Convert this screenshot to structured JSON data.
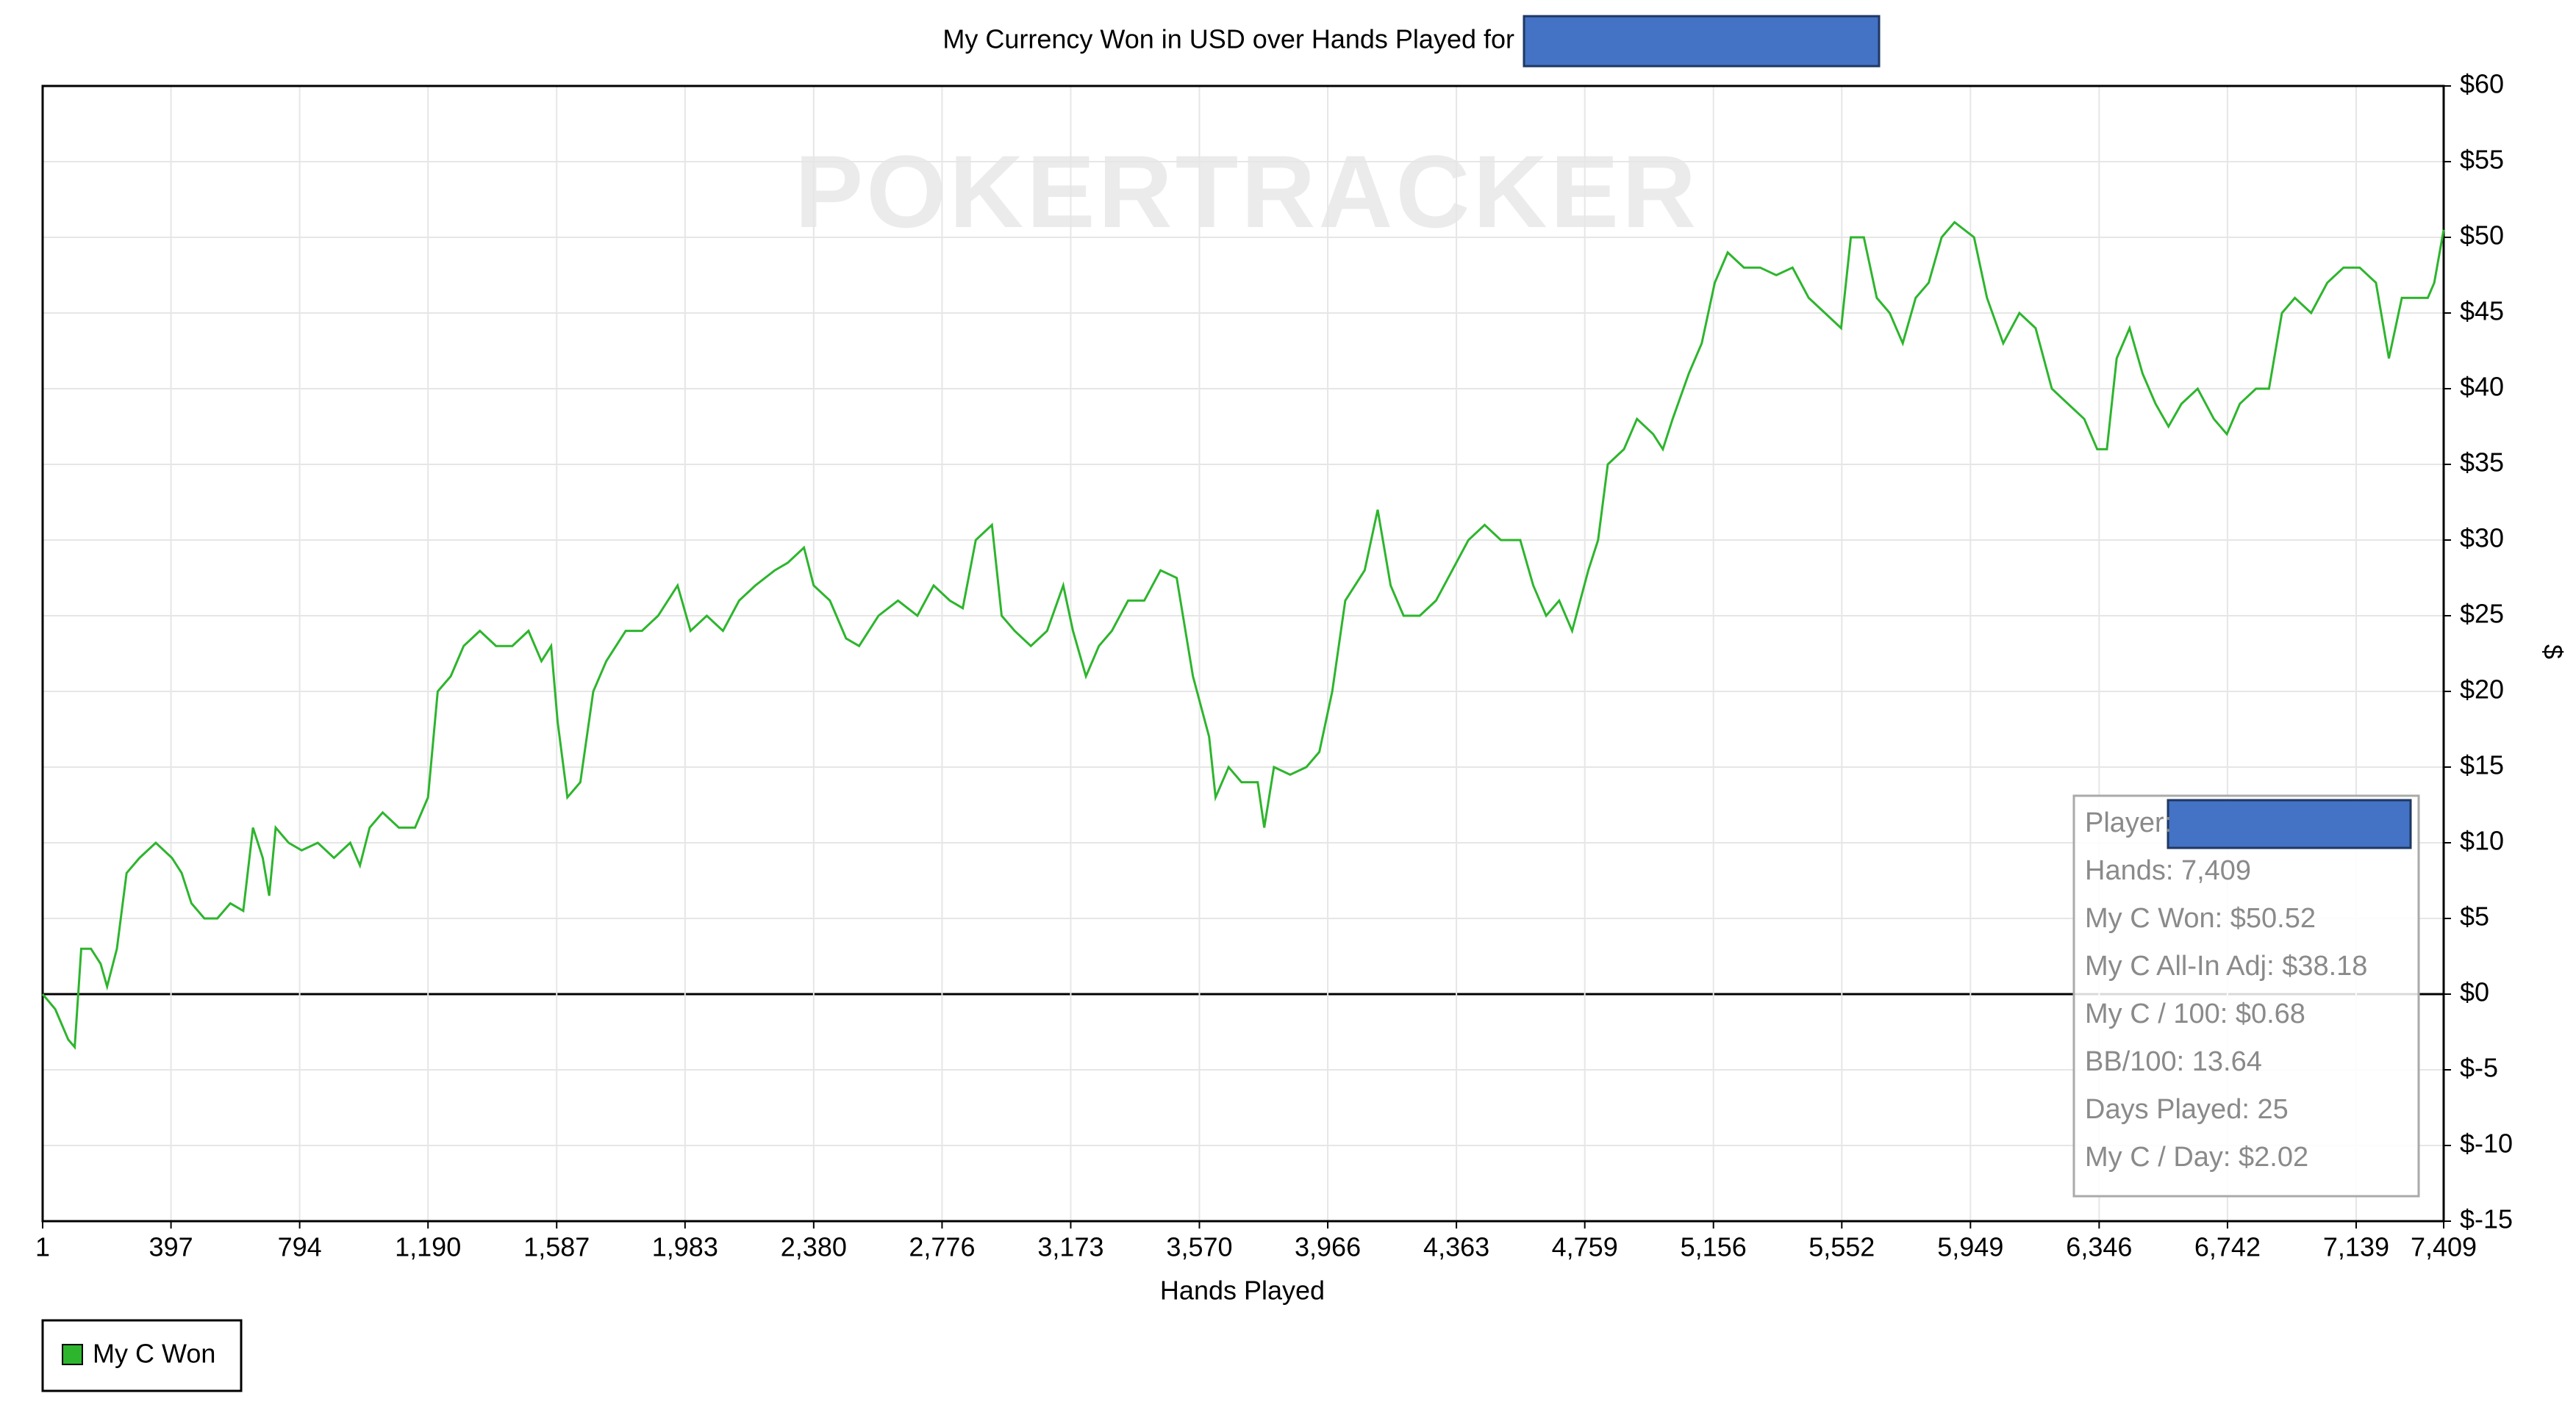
{
  "chart_data": {
    "type": "line",
    "title": "My Currency Won in USD over Hands Played for",
    "watermark": "POKERTRACKER",
    "x_label": "Hands Played",
    "y_label": "$",
    "xlim": [
      1,
      7409
    ],
    "ylim": [
      -15,
      60
    ],
    "xticks": [
      1,
      397,
      794,
      {
        "value": 1190,
        "label": "1,190"
      },
      {
        "value": 1587,
        "label": "1,587"
      },
      {
        "value": 1983,
        "label": "1,983"
      },
      {
        "value": 2380,
        "label": "2,380"
      },
      {
        "value": 2776,
        "label": "2,776"
      },
      {
        "value": 3173,
        "label": "3,173"
      },
      {
        "value": 3570,
        "label": "3,570"
      },
      {
        "value": 3966,
        "label": "3,966"
      },
      {
        "value": 4363,
        "label": "4,363"
      },
      {
        "value": 4759,
        "label": "4,759"
      },
      {
        "value": 5156,
        "label": "5,156"
      },
      {
        "value": 5552,
        "label": "5,552"
      },
      {
        "value": 5949,
        "label": "5,949"
      },
      {
        "value": 6346,
        "label": "6,346"
      },
      {
        "value": 6742,
        "label": "6,742"
      },
      {
        "value": 7139,
        "label": "7,139"
      },
      {
        "value": 7409,
        "label": "7,409"
      }
    ],
    "yticks": [
      {
        "value": -15,
        "label": "$-15"
      },
      {
        "value": -10,
        "label": "$-10"
      },
      {
        "value": -5,
        "label": "$-5"
      },
      {
        "value": 0,
        "label": "$0"
      },
      {
        "value": 5,
        "label": "$5"
      },
      {
        "value": 10,
        "label": "$10"
      },
      {
        "value": 15,
        "label": "$15"
      },
      {
        "value": 20,
        "label": "$20"
      },
      {
        "value": 25,
        "label": "$25"
      },
      {
        "value": 30,
        "label": "$30"
      },
      {
        "value": 35,
        "label": "$35"
      },
      {
        "value": 40,
        "label": "$40"
      },
      {
        "value": 45,
        "label": "$45"
      },
      {
        "value": 50,
        "label": "$50"
      },
      {
        "value": 55,
        "label": "$55"
      },
      {
        "value": 60,
        "label": "$60"
      }
    ],
    "grid": true,
    "legend": "bottom-left",
    "x": [
      1,
      40,
      80,
      100,
      120,
      150,
      180,
      200,
      230,
      260,
      300,
      350,
      400,
      430,
      460,
      500,
      540,
      580,
      620,
      650,
      680,
      700,
      720,
      760,
      800,
      850,
      900,
      950,
      980,
      1010,
      1050,
      1100,
      1150,
      1190,
      1220,
      1260,
      1300,
      1350,
      1400,
      1450,
      1500,
      1540,
      1570,
      1590,
      1620,
      1660,
      1700,
      1740,
      1800,
      1850,
      1900,
      1960,
      2000,
      2050,
      2100,
      2150,
      2200,
      2260,
      2300,
      2350,
      2380,
      2430,
      2480,
      2520,
      2580,
      2640,
      2700,
      2750,
      2800,
      2840,
      2880,
      2930,
      2960,
      3000,
      3050,
      3100,
      3150,
      3180,
      3220,
      3260,
      3300,
      3350,
      3400,
      3450,
      3500,
      3550,
      3600,
      3620,
      3660,
      3700,
      3750,
      3770,
      3800,
      3850,
      3900,
      3940,
      3980,
      4020,
      4080,
      4120,
      4160,
      4200,
      4250,
      4300,
      4350,
      4400,
      4450,
      4500,
      4560,
      4600,
      4640,
      4680,
      4720,
      4770,
      4800,
      4830,
      4880,
      4920,
      4970,
      5000,
      5030,
      5080,
      5120,
      5160,
      5200,
      5250,
      5300,
      5350,
      5400,
      5450,
      5500,
      5550,
      5580,
      5620,
      5660,
      5700,
      5740,
      5780,
      5820,
      5860,
      5900,
      5960,
      6000,
      6050,
      6100,
      6150,
      6200,
      6250,
      6300,
      6340,
      6370,
      6400,
      6440,
      6480,
      6520,
      6560,
      6600,
      6650,
      6700,
      6740,
      6780,
      6830,
      6870,
      6910,
      6950,
      7000,
      7050,
      7100,
      7150,
      7200,
      7240,
      7280,
      7320,
      7360,
      7380,
      7409
    ],
    "series": [
      {
        "name": "My C Won",
        "color": "#2db52d",
        "values": [
          0,
          -1,
          -3,
          -3.5,
          3,
          3,
          2,
          0.5,
          3,
          8,
          9,
          10,
          9,
          8,
          6,
          5,
          5,
          6,
          5.5,
          11,
          9,
          6.5,
          11,
          10,
          9.5,
          10,
          9,
          10,
          8.5,
          11,
          12,
          11,
          11,
          13,
          20,
          21,
          23,
          24,
          23,
          23,
          24,
          22,
          23,
          18,
          13,
          14,
          20,
          22,
          24,
          24,
          25,
          27,
          24,
          25,
          24,
          26,
          27,
          28,
          28.5,
          29.5,
          27,
          26,
          23.5,
          23,
          25,
          26,
          25,
          27,
          26,
          25.5,
          30,
          31,
          25,
          24,
          23,
          24,
          27,
          24,
          21,
          23,
          24,
          26,
          26,
          28,
          27.5,
          21,
          17,
          13,
          15,
          14,
          14,
          11,
          15,
          14.5,
          15,
          16,
          20,
          26,
          28,
          32,
          27,
          25,
          25,
          26,
          28,
          30,
          31,
          30,
          30,
          27,
          25,
          26,
          24,
          28,
          30,
          35,
          36,
          38,
          37,
          36,
          38,
          41,
          43,
          47,
          49,
          48,
          48,
          47.5,
          48,
          46,
          45,
          44,
          50,
          50,
          46,
          45,
          43,
          46,
          47,
          50,
          51,
          50,
          46,
          43,
          45,
          44,
          40,
          39,
          38,
          36,
          36,
          42,
          44,
          41,
          39,
          37.5,
          39,
          40,
          38,
          37,
          39,
          40,
          40,
          45,
          46,
          45,
          47,
          48,
          48,
          47,
          42,
          46,
          46,
          46,
          47,
          50.5
        ]
      }
    ],
    "info_box": [
      "Player:",
      "Hands: 7,409",
      "My C Won: $50.52",
      "My C All-In Adj: $38.18",
      "My C / 100: $0.68",
      "BB/100: 13.64",
      "Days Played: 25",
      "My C / Day: $2.02"
    ]
  }
}
